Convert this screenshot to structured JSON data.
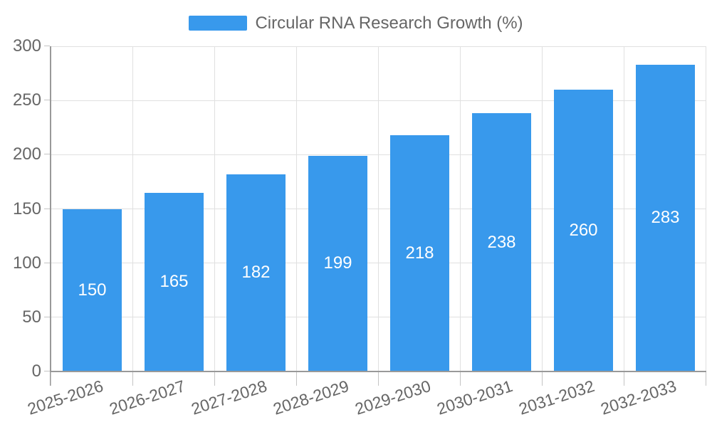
{
  "chart_data": {
    "type": "bar",
    "title": "Circular RNA Research Growth (%)",
    "series_name": "Circular RNA Research Growth (%)",
    "categories": [
      "2025-2026",
      "2026-2027",
      "2027-2028",
      "2028-2029",
      "2029-2030",
      "2030-2031",
      "2031-2032",
      "2032-2033"
    ],
    "values": [
      150,
      165,
      182,
      199,
      218,
      238,
      260,
      283
    ],
    "bar_labels": [
      "150",
      "165",
      "182",
      "199",
      "218",
      "238",
      "260",
      "283"
    ],
    "xlabel": "",
    "ylabel": "",
    "ylim": [
      0,
      300
    ],
    "yticks": [
      0,
      50,
      100,
      150,
      200,
      250,
      300
    ],
    "grid": true,
    "legend_position": "top-center",
    "x_label_rotation_deg": -18,
    "colors": {
      "bar": "#3899ec",
      "bar_value_text": "#ffffff",
      "axis_text": "#666666",
      "legend_text": "#666666",
      "gridline": "#e0e0e0",
      "axis_line": "#999999",
      "tick_mark": "#c4c4c4",
      "background": "#ffffff"
    }
  }
}
